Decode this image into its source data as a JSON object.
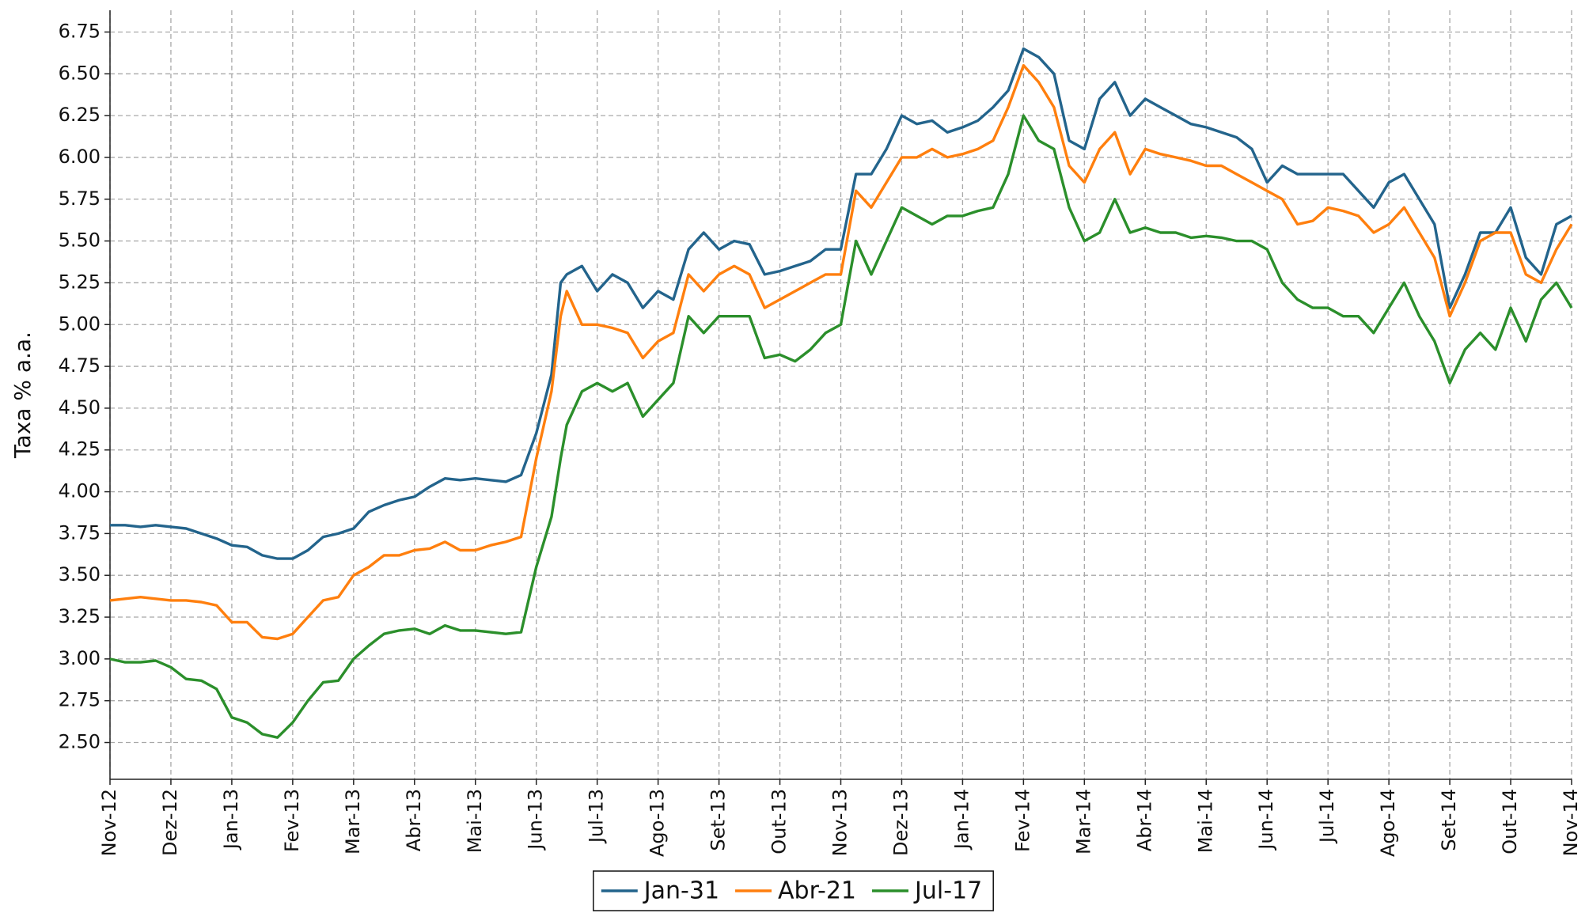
{
  "chart_data": {
    "type": "line",
    "ylabel": "Taxa % a.a.",
    "x": [
      0,
      0.25,
      0.5,
      0.75,
      1,
      1.25,
      1.5,
      1.75,
      2,
      2.25,
      2.5,
      2.75,
      3,
      3.25,
      3.5,
      3.75,
      4,
      4.25,
      4.5,
      4.75,
      5,
      5.25,
      5.5,
      5.75,
      6,
      6.25,
      6.5,
      6.75,
      7,
      7.25,
      7.4,
      7.5,
      7.75,
      8,
      8.25,
      8.5,
      8.75,
      9,
      9.25,
      9.5,
      9.75,
      10,
      10.25,
      10.5,
      10.75,
      11,
      11.25,
      11.5,
      11.75,
      12,
      12.25,
      12.5,
      12.75,
      13,
      13.25,
      13.5,
      13.75,
      14,
      14.25,
      14.5,
      14.75,
      15,
      15.25,
      15.5,
      15.75,
      16,
      16.25,
      16.5,
      16.75,
      17,
      17.25,
      17.5,
      17.75,
      18,
      18.25,
      18.5,
      18.75,
      19,
      19.25,
      19.5,
      19.75,
      20,
      20.25,
      20.5,
      20.75,
      21,
      21.25,
      21.5,
      21.75,
      22,
      22.25,
      22.5,
      22.75,
      23,
      23.25,
      23.5,
      23.75,
      24
    ],
    "series": [
      {
        "name": "Jan-31",
        "color": "#23648c",
        "values": [
          3.8,
          3.8,
          3.79,
          3.8,
          3.79,
          3.78,
          3.75,
          3.72,
          3.68,
          3.67,
          3.62,
          3.6,
          3.6,
          3.65,
          3.73,
          3.75,
          3.78,
          3.88,
          3.92,
          3.95,
          3.97,
          4.03,
          4.08,
          4.07,
          4.08,
          4.07,
          4.06,
          4.1,
          4.35,
          4.7,
          5.25,
          5.3,
          5.35,
          5.2,
          5.3,
          5.25,
          5.1,
          5.2,
          5.15,
          5.45,
          5.55,
          5.45,
          5.5,
          5.48,
          5.3,
          5.32,
          5.35,
          5.38,
          5.45,
          5.45,
          5.9,
          5.9,
          6.05,
          6.25,
          6.2,
          6.22,
          6.15,
          6.18,
          6.22,
          6.3,
          6.4,
          6.65,
          6.6,
          6.5,
          6.1,
          6.05,
          6.35,
          6.45,
          6.25,
          6.35,
          6.3,
          6.25,
          6.2,
          6.18,
          6.15,
          6.12,
          6.05,
          5.85,
          5.95,
          5.9,
          5.9,
          5.9,
          5.9,
          5.8,
          5.7,
          5.85,
          5.9,
          5.75,
          5.6,
          5.1,
          5.3,
          5.55,
          5.55,
          5.7,
          5.4,
          5.3,
          5.6,
          5.65
        ]
      },
      {
        "name": "Abr-21",
        "color": "#ff7f0e",
        "values": [
          3.35,
          3.36,
          3.37,
          3.36,
          3.35,
          3.35,
          3.34,
          3.32,
          3.22,
          3.22,
          3.13,
          3.12,
          3.15,
          3.25,
          3.35,
          3.37,
          3.5,
          3.55,
          3.62,
          3.62,
          3.65,
          3.66,
          3.7,
          3.65,
          3.65,
          3.68,
          3.7,
          3.73,
          4.2,
          4.6,
          5.05,
          5.2,
          5.0,
          5.0,
          4.98,
          4.95,
          4.8,
          4.9,
          4.95,
          5.3,
          5.2,
          5.3,
          5.35,
          5.3,
          5.1,
          5.15,
          5.2,
          5.25,
          5.3,
          5.3,
          5.8,
          5.7,
          5.85,
          6.0,
          6.0,
          6.05,
          6.0,
          6.02,
          6.05,
          6.1,
          6.3,
          6.55,
          6.45,
          6.3,
          5.95,
          5.85,
          6.05,
          6.15,
          5.9,
          6.05,
          6.02,
          6.0,
          5.98,
          5.95,
          5.95,
          5.9,
          5.85,
          5.8,
          5.75,
          5.6,
          5.62,
          5.7,
          5.68,
          5.65,
          5.55,
          5.6,
          5.7,
          5.55,
          5.4,
          5.05,
          5.25,
          5.5,
          5.55,
          5.55,
          5.3,
          5.25,
          5.45,
          5.6
        ]
      },
      {
        "name": "Jul-17",
        "color": "#2b8f2b",
        "values": [
          3.0,
          2.98,
          2.98,
          2.99,
          2.95,
          2.88,
          2.87,
          2.82,
          2.65,
          2.62,
          2.55,
          2.53,
          2.62,
          2.75,
          2.86,
          2.87,
          3.0,
          3.08,
          3.15,
          3.17,
          3.18,
          3.15,
          3.2,
          3.17,
          3.17,
          3.16,
          3.15,
          3.16,
          3.55,
          3.85,
          4.2,
          4.4,
          4.6,
          4.65,
          4.6,
          4.65,
          4.45,
          4.55,
          4.65,
          5.05,
          4.95,
          5.05,
          5.05,
          5.05,
          4.8,
          4.82,
          4.78,
          4.85,
          4.95,
          5.0,
          5.5,
          5.3,
          5.5,
          5.7,
          5.65,
          5.6,
          5.65,
          5.65,
          5.68,
          5.7,
          5.9,
          6.25,
          6.1,
          6.05,
          5.7,
          5.5,
          5.55,
          5.75,
          5.55,
          5.58,
          5.55,
          5.55,
          5.52,
          5.53,
          5.52,
          5.5,
          5.5,
          5.45,
          5.25,
          5.15,
          5.1,
          5.1,
          5.05,
          5.05,
          4.95,
          5.1,
          5.25,
          5.05,
          4.9,
          4.65,
          4.85,
          4.95,
          4.85,
          5.1,
          4.9,
          5.15,
          5.25,
          5.1
        ]
      }
    ],
    "xlim": [
      0,
      24
    ],
    "xticks": [
      {
        "value": 0,
        "label": "Nov-12"
      },
      {
        "value": 1,
        "label": "Dez-12"
      },
      {
        "value": 2,
        "label": "Jan-13"
      },
      {
        "value": 3,
        "label": "Fev-13"
      },
      {
        "value": 4,
        "label": "Mar-13"
      },
      {
        "value": 5,
        "label": "Abr-13"
      },
      {
        "value": 6,
        "label": "Mai-13"
      },
      {
        "value": 7,
        "label": "Jun-13"
      },
      {
        "value": 8,
        "label": "Jul-13"
      },
      {
        "value": 9,
        "label": "Ago-13"
      },
      {
        "value": 10,
        "label": "Set-13"
      },
      {
        "value": 11,
        "label": "Out-13"
      },
      {
        "value": 12,
        "label": "Nov-13"
      },
      {
        "value": 13,
        "label": "Dez-13"
      },
      {
        "value": 14,
        "label": "Jan-14"
      },
      {
        "value": 15,
        "label": "Fev-14"
      },
      {
        "value": 16,
        "label": "Mar-14"
      },
      {
        "value": 17,
        "label": "Abr-14"
      },
      {
        "value": 18,
        "label": "Mai-14"
      },
      {
        "value": 19,
        "label": "Jun-14"
      },
      {
        "value": 20,
        "label": "Jul-14"
      },
      {
        "value": 21,
        "label": "Ago-14"
      },
      {
        "value": 22,
        "label": "Set-14"
      },
      {
        "value": 23,
        "label": "Out-14"
      },
      {
        "value": 24,
        "label": "Nov-14"
      }
    ],
    "ylim": [
      2.28,
      6.88
    ],
    "yticks": [
      {
        "value": 2.5,
        "label": "2.50"
      },
      {
        "value": 2.75,
        "label": "2.75"
      },
      {
        "value": 3,
        "label": "3.00"
      },
      {
        "value": 3.25,
        "label": "3.25"
      },
      {
        "value": 3.5,
        "label": "3.50"
      },
      {
        "value": 3.75,
        "label": "3.75"
      },
      {
        "value": 4,
        "label": "4.00"
      },
      {
        "value": 4.25,
        "label": "4.25"
      },
      {
        "value": 4.5,
        "label": "4.50"
      },
      {
        "value": 4.75,
        "label": "4.75"
      },
      {
        "value": 5,
        "label": "5.00"
      },
      {
        "value": 5.25,
        "label": "5.25"
      },
      {
        "value": 5.5,
        "label": "5.50"
      },
      {
        "value": 5.75,
        "label": "5.75"
      },
      {
        "value": 6,
        "label": "6.00"
      },
      {
        "value": 6.25,
        "label": "6.25"
      },
      {
        "value": 6.5,
        "label": "6.50"
      },
      {
        "value": 6.75,
        "label": "6.75"
      }
    ],
    "grid": true,
    "legend": "bottom"
  }
}
